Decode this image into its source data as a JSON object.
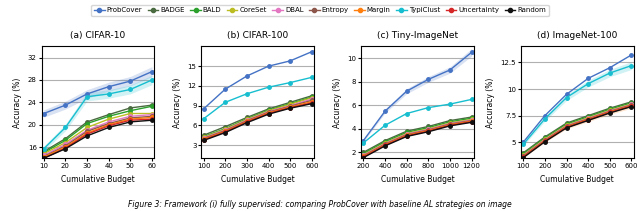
{
  "caption": "Figure 3: Framework (i) fully supervised: comparing ProbCover with baseline AL strategies on image",
  "legend": "top",
  "chart_data": [
    {
      "type": "line",
      "title": "(a) CIFAR-10",
      "x_label": "Cumulative Budget",
      "y_label": "Accuracy (%)",
      "x": [
        10,
        20,
        30,
        40,
        50,
        60
      ],
      "xlim": [
        9,
        61
      ],
      "xticks": [
        10,
        20,
        30,
        40,
        50,
        60
      ],
      "ylim": [
        14,
        34
      ],
      "yticks": [
        16,
        20,
        24,
        28,
        32
      ],
      "grid": "y",
      "series": [
        {
          "name": "ProbCover",
          "color": "#4472c4",
          "marker": "o",
          "values": [
            22.0,
            23.5,
            25.5,
            26.8,
            27.8,
            29.5
          ],
          "lower": [
            21.34,
            22.795,
            24.735,
            25.996,
            26.966,
            28.615
          ],
          "upper": [
            22.66,
            24.205,
            26.265,
            27.604,
            28.634,
            30.385
          ]
        },
        {
          "name": "BADGE",
          "color": "#4a6a40",
          "marker": "o",
          "values": [
            15.2,
            17.5,
            20.5,
            21.8,
            23.0,
            23.5
          ]
        },
        {
          "name": "BALD",
          "color": "#2ca02c",
          "marker": "o",
          "values": [
            15.0,
            17.2,
            20.2,
            21.5,
            22.5,
            23.3
          ]
        },
        {
          "name": "CoreSet",
          "color": "#bcbd22",
          "marker": "o",
          "values": [
            14.8,
            16.8,
            19.5,
            21.0,
            22.0,
            22.0
          ]
        },
        {
          "name": "DBAL",
          "color": "#e377c2",
          "marker": "o",
          "values": [
            14.5,
            16.5,
            19.0,
            20.5,
            21.5,
            21.8
          ]
        },
        {
          "name": "Entropy",
          "color": "#8c564b",
          "marker": "o",
          "values": [
            14.3,
            16.2,
            18.8,
            20.2,
            21.2,
            21.5
          ]
        },
        {
          "name": "Margin",
          "color": "#ff7f0e",
          "marker": "o",
          "values": [
            14.2,
            16.0,
            18.5,
            20.0,
            21.0,
            21.3
          ]
        },
        {
          "name": "TypiClust",
          "color": "#17becf",
          "marker": "o",
          "values": [
            15.7,
            19.5,
            25.0,
            25.5,
            26.3,
            28.0
          ],
          "lower": [
            15.229,
            18.915,
            24.25,
            24.735,
            25.511,
            27.16
          ],
          "upper": [
            16.171,
            20.085,
            25.75,
            26.265,
            27.089,
            28.84
          ]
        },
        {
          "name": "Uncertainty",
          "color": "#d62728",
          "marker": "o",
          "values": [
            14.0,
            15.8,
            18.3,
            19.8,
            20.8,
            21.0
          ]
        },
        {
          "name": "Random",
          "color": "#111111",
          "marker": "o",
          "values": [
            14.0,
            15.7,
            18.0,
            19.5,
            20.5,
            20.8
          ]
        }
      ]
    },
    {
      "type": "line",
      "title": "(b) CIFAR-100",
      "x_label": "Cumulative Budget",
      "y_label": "Accuracy (%)",
      "x": [
        100,
        200,
        300,
        400,
        500,
        600
      ],
      "xlim": [
        90,
        610
      ],
      "xticks": [
        100,
        200,
        300,
        400,
        500,
        600
      ],
      "ylim": [
        1,
        18
      ],
      "yticks": [
        3,
        6,
        9,
        12,
        15
      ],
      "grid": "y",
      "series": [
        {
          "name": "ProbCover",
          "color": "#4472c4",
          "marker": "o",
          "values": [
            8.5,
            11.5,
            13.5,
            15.0,
            15.8,
            17.2
          ]
        },
        {
          "name": "BADGE",
          "color": "#4a6a40",
          "marker": "o",
          "values": [
            4.5,
            5.8,
            7.2,
            8.5,
            9.5,
            10.5
          ]
        },
        {
          "name": "BALD",
          "color": "#2ca02c",
          "marker": "o",
          "values": [
            4.3,
            5.5,
            7.0,
            8.3,
            9.3,
            10.3
          ]
        },
        {
          "name": "CoreSet",
          "color": "#bcbd22",
          "marker": "o",
          "values": [
            4.2,
            5.4,
            6.9,
            8.2,
            9.2,
            10.2
          ]
        },
        {
          "name": "DBAL",
          "color": "#e377c2",
          "marker": "o",
          "values": [
            4.1,
            5.3,
            6.8,
            8.1,
            9.0,
            10.0
          ]
        },
        {
          "name": "Entropy",
          "color": "#8c564b",
          "marker": "o",
          "values": [
            4.0,
            5.2,
            6.7,
            8.0,
            8.9,
            9.8
          ]
        },
        {
          "name": "Margin",
          "color": "#ff7f0e",
          "marker": "o",
          "values": [
            3.9,
            5.1,
            6.6,
            7.9,
            8.8,
            9.6
          ]
        },
        {
          "name": "TypiClust",
          "color": "#17becf",
          "marker": "o",
          "values": [
            7.0,
            9.5,
            10.8,
            11.8,
            12.5,
            13.3
          ]
        },
        {
          "name": "Uncertainty",
          "color": "#d62728",
          "marker": "o",
          "values": [
            3.8,
            5.0,
            6.5,
            7.8,
            8.7,
            9.4
          ]
        },
        {
          "name": "Random",
          "color": "#111111",
          "marker": "o",
          "values": [
            3.7,
            4.9,
            6.4,
            7.7,
            8.6,
            9.3
          ]
        }
      ]
    },
    {
      "type": "line",
      "title": "(c) Tiny-ImageNet",
      "x_label": "Cumulative Budget",
      "y_label": "Accuracy (%)",
      "x": [
        200,
        400,
        600,
        800,
        1000,
        1200
      ],
      "xlim": [
        180,
        1220
      ],
      "xticks": [
        200,
        400,
        600,
        800,
        1000,
        1200
      ],
      "ylim": [
        1.5,
        11
      ],
      "yticks": [
        2,
        4,
        6,
        8,
        10
      ],
      "grid": "y",
      "series": [
        {
          "name": "ProbCover",
          "color": "#4472c4",
          "marker": "o",
          "values": [
            3.0,
            5.5,
            7.2,
            8.2,
            9.0,
            10.5
          ],
          "lower": [
            2.91,
            5.335,
            6.984,
            7.954,
            8.73,
            10.185
          ],
          "upper": [
            3.09,
            5.665,
            7.416,
            8.446,
            9.27,
            10.815
          ]
        },
        {
          "name": "BADGE",
          "color": "#4a6a40",
          "marker": "o",
          "values": [
            2.0,
            3.0,
            3.8,
            4.2,
            4.7,
            5.0
          ]
        },
        {
          "name": "BALD",
          "color": "#2ca02c",
          "marker": "o",
          "values": [
            1.9,
            2.9,
            3.7,
            4.1,
            4.6,
            4.9
          ]
        },
        {
          "name": "CoreSet",
          "color": "#bcbd22",
          "marker": "o",
          "values": [
            1.8,
            2.8,
            3.6,
            4.0,
            4.5,
            4.8
          ]
        },
        {
          "name": "DBAL",
          "color": "#e377c2",
          "marker": "o",
          "values": [
            1.75,
            2.75,
            3.55,
            3.95,
            4.45,
            4.75
          ]
        },
        {
          "name": "Entropy",
          "color": "#8c564b",
          "marker": "o",
          "values": [
            1.7,
            2.7,
            3.5,
            3.9,
            4.4,
            4.7
          ]
        },
        {
          "name": "Margin",
          "color": "#ff7f0e",
          "marker": "o",
          "values": [
            1.65,
            2.65,
            3.45,
            3.85,
            4.35,
            4.65
          ]
        },
        {
          "name": "TypiClust",
          "color": "#17becf",
          "marker": "o",
          "values": [
            2.8,
            4.3,
            5.3,
            5.8,
            6.1,
            6.5
          ]
        },
        {
          "name": "Uncertainty",
          "color": "#d62728",
          "marker": "o",
          "values": [
            1.6,
            2.6,
            3.4,
            3.8,
            4.3,
            4.6
          ]
        },
        {
          "name": "Random",
          "color": "#111111",
          "marker": "o",
          "values": [
            1.55,
            2.55,
            3.35,
            3.75,
            4.25,
            4.55
          ]
        }
      ]
    },
    {
      "type": "line",
      "title": "(d) ImageNet-100",
      "x_label": "Cumulative Budget",
      "y_label": "Accuracy (%)",
      "x": [
        100,
        200,
        300,
        400,
        500,
        600
      ],
      "xlim": [
        90,
        610
      ],
      "xticks": [
        100,
        200,
        300,
        400,
        500,
        600
      ],
      "ylim": [
        3.5,
        14
      ],
      "yticks": [
        5,
        7.5,
        10,
        12.5
      ],
      "grid": "y",
      "series": [
        {
          "name": "ProbCover",
          "color": "#4472c4",
          "marker": "o",
          "values": [
            5.0,
            7.5,
            9.5,
            11.0,
            12.0,
            13.2
          ]
        },
        {
          "name": "BADGE",
          "color": "#4a6a40",
          "marker": "o",
          "values": [
            4.0,
            5.5,
            6.8,
            7.5,
            8.2,
            8.8
          ]
        },
        {
          "name": "BALD",
          "color": "#2ca02c",
          "marker": "o",
          "values": [
            3.9,
            5.4,
            6.7,
            7.4,
            8.1,
            8.7
          ]
        },
        {
          "name": "CoreSet",
          "color": "#bcbd22",
          "marker": "o",
          "values": [
            3.8,
            5.3,
            6.6,
            7.3,
            8.0,
            8.6
          ]
        },
        {
          "name": "DBAL",
          "color": "#e377c2",
          "marker": "o",
          "values": [
            3.75,
            5.25,
            6.55,
            7.25,
            7.95,
            8.55
          ]
        },
        {
          "name": "Entropy",
          "color": "#8c564b",
          "marker": "o",
          "values": [
            3.7,
            5.2,
            6.5,
            7.2,
            7.9,
            8.5
          ]
        },
        {
          "name": "Margin",
          "color": "#ff7f0e",
          "marker": "o",
          "values": [
            3.65,
            5.15,
            6.45,
            7.15,
            7.85,
            8.45
          ],
          "lower": [
            3.5405,
            4.9955,
            6.2565,
            6.9355,
            7.6145,
            8.1965
          ],
          "upper": [
            3.7595,
            5.3045,
            6.6435,
            7.3645,
            8.0855,
            8.7035
          ]
        },
        {
          "name": "TypiClust",
          "color": "#17becf",
          "marker": "o",
          "values": [
            4.8,
            7.2,
            9.2,
            10.5,
            11.5,
            12.2
          ],
          "lower": [
            4.656,
            6.984,
            8.924,
            10.185,
            11.155,
            11.834
          ],
          "upper": [
            4.944,
            7.416,
            9.476,
            10.815,
            11.845,
            12.566
          ]
        },
        {
          "name": "Uncertainty",
          "color": "#d62728",
          "marker": "o",
          "values": [
            3.6,
            5.1,
            6.4,
            7.1,
            7.8,
            8.4
          ]
        },
        {
          "name": "Random",
          "color": "#111111",
          "marker": "o",
          "values": [
            3.55,
            5.05,
            6.35,
            7.05,
            7.75,
            8.35
          ]
        }
      ]
    }
  ]
}
